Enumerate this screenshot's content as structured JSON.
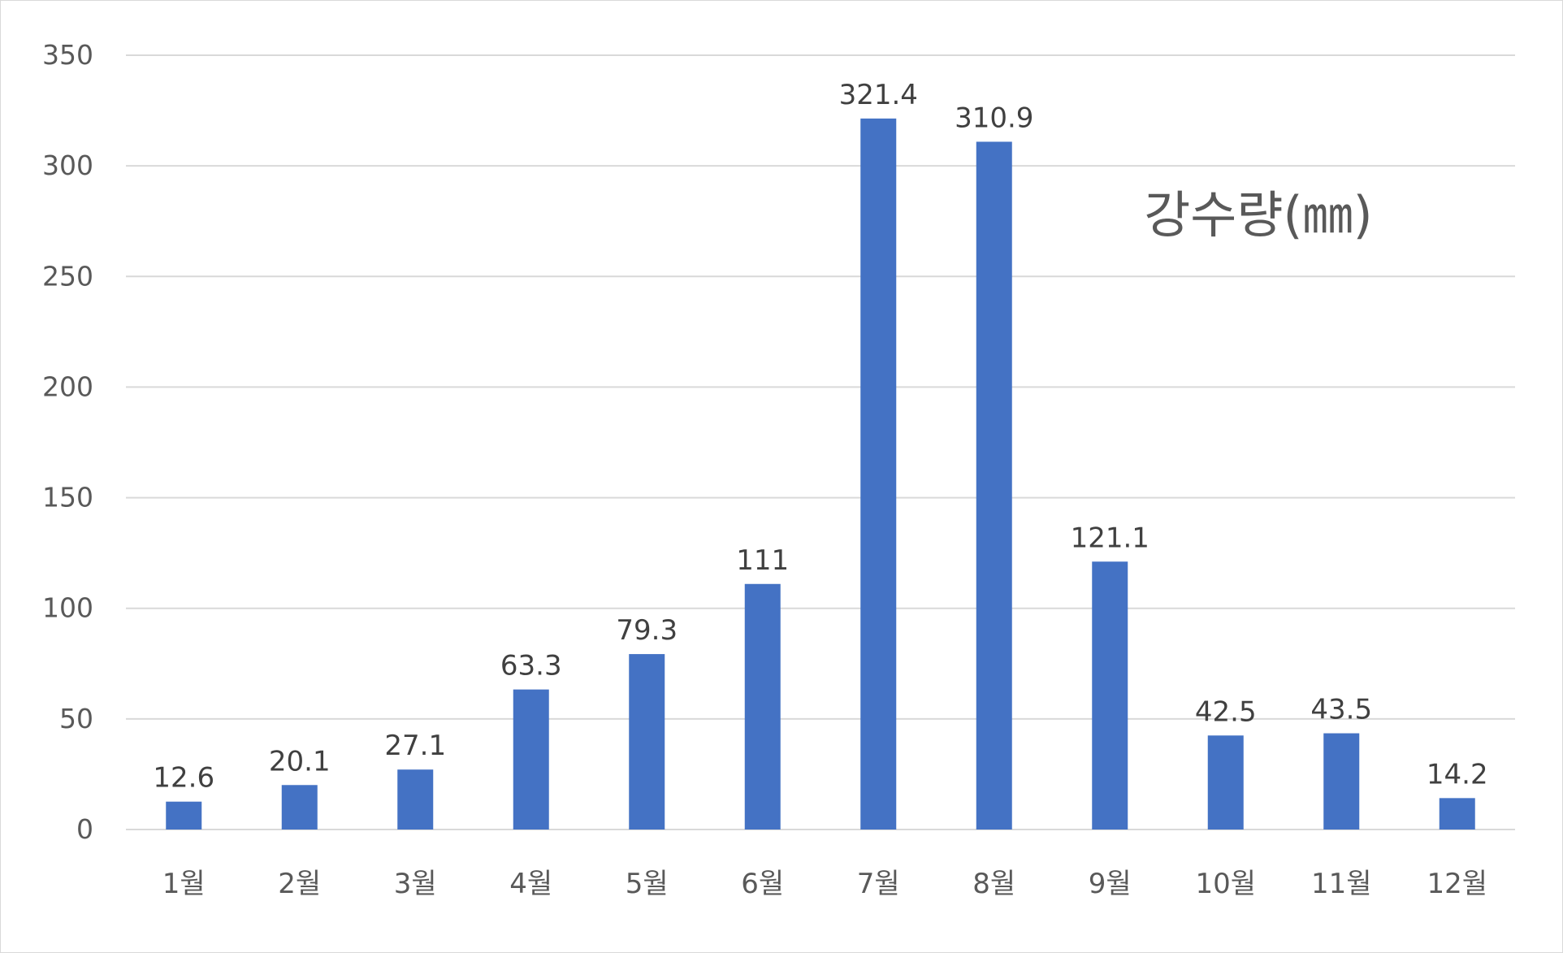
{
  "chart_data": {
    "type": "bar",
    "title": "강수량(㎜)",
    "xlabel": "",
    "ylabel": "",
    "categories": [
      "1월",
      "2월",
      "3월",
      "4월",
      "5월",
      "6월",
      "7월",
      "8월",
      "9월",
      "10월",
      "11월",
      "12월"
    ],
    "values": [
      12.6,
      20.1,
      27.1,
      63.3,
      79.3,
      111,
      321.4,
      310.9,
      121.1,
      42.5,
      43.5,
      14.2
    ],
    "data_labels": [
      "12.6",
      "20.1",
      "27.1",
      "63.3",
      "79.3",
      "111",
      "321.4",
      "310.9",
      "121.1",
      "42.5",
      "43.5",
      "14.2"
    ],
    "ylim": [
      0,
      350
    ],
    "yticks": [
      0,
      50,
      100,
      150,
      200,
      250,
      300,
      350
    ],
    "grid": true,
    "legend": "none",
    "colors": {
      "bar": "#4472C4",
      "grid": "#d9d9d9",
      "text": "#595959"
    }
  }
}
